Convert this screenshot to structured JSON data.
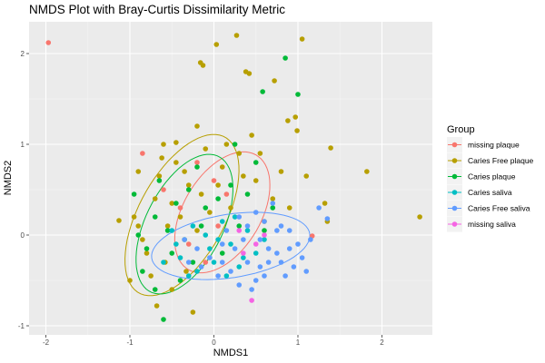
{
  "chart_data": {
    "type": "scatter",
    "title": "NMDS Plot with Bray-Curtis Dissimilarity Metric",
    "xlabel": "NMDS1",
    "ylabel": "NMDS2",
    "xlim": [
      -2.2,
      2.6
    ],
    "ylim": [
      -1.1,
      2.35
    ],
    "x_ticks": [
      -2,
      -1,
      0,
      1,
      2
    ],
    "y_ticks": [
      -1,
      0,
      1,
      2
    ],
    "grid": true,
    "legend": {
      "title": "Group",
      "placement": "right"
    },
    "series": [
      {
        "name": "missing plaque",
        "color": "#F8766D",
        "ellipse": {
          "cx": 0.1,
          "cy": 0.25,
          "rx": 0.75,
          "ry": 0.45,
          "angle": 55
        },
        "points": [
          [
            -1.97,
            2.12
          ],
          [
            1.17,
            -0.01
          ],
          [
            -0.85,
            0.9
          ],
          [
            0.0,
            0.6
          ],
          [
            -0.4,
            0.3
          ],
          [
            -0.2,
            0.8
          ],
          [
            0.15,
            0.45
          ],
          [
            -0.6,
            0.5
          ],
          [
            -0.3,
            -0.1
          ],
          [
            0.05,
            0.1
          ],
          [
            -0.1,
            -0.3
          ]
        ]
      },
      {
        "name": "Caries Free plaque",
        "color": "#B79F00",
        "ellipse": {
          "cx": -0.38,
          "cy": 0.22,
          "rx": 1.0,
          "ry": 0.5,
          "angle": 58
        },
        "points": [
          [
            0.27,
            2.2
          ],
          [
            0.03,
            2.1
          ],
          [
            1.05,
            2.16
          ],
          [
            -0.16,
            1.9
          ],
          [
            -0.13,
            1.87
          ],
          [
            0.38,
            1.8
          ],
          [
            0.42,
            1.78
          ],
          [
            0.72,
            1.7
          ],
          [
            0.88,
            1.26
          ],
          [
            0.97,
            1.3
          ],
          [
            0.99,
            1.15
          ],
          [
            1.39,
            0.96
          ],
          [
            1.82,
            0.7
          ],
          [
            2.45,
            0.2
          ],
          [
            1.32,
            0.35
          ],
          [
            1.35,
            0.15
          ],
          [
            -1.13,
            0.16
          ],
          [
            -0.6,
            1.0
          ],
          [
            -0.9,
            0.7
          ],
          [
            -0.68,
            -0.78
          ],
          [
            -0.33,
            -0.4
          ],
          [
            -0.2,
            1.2
          ],
          [
            0.45,
            1.1
          ],
          [
            0.5,
            0.6
          ],
          [
            0.7,
            0.4
          ],
          [
            0.9,
            0.3
          ],
          [
            -0.95,
            0.2
          ],
          [
            -0.8,
            -0.2
          ],
          [
            -0.5,
            -0.6
          ],
          [
            -0.25,
            -0.85
          ],
          [
            -0.7,
            0.4
          ],
          [
            -0.45,
            0.8
          ],
          [
            -0.3,
            0.55
          ],
          [
            -0.1,
            0.95
          ],
          [
            0.1,
            0.75
          ],
          [
            0.3,
            0.9
          ],
          [
            0.2,
            0.3
          ],
          [
            -0.55,
            0.1
          ],
          [
            -0.85,
            -0.05
          ],
          [
            -0.65,
            0.65
          ],
          [
            -0.4,
            0.2
          ],
          [
            -0.15,
            0.45
          ],
          [
            0.05,
            0.55
          ],
          [
            0.35,
            0.65
          ],
          [
            0.6,
            0.15
          ],
          [
            -0.75,
            -0.45
          ],
          [
            -0.58,
            -0.3
          ],
          [
            -0.2,
            0.05
          ],
          [
            -0.5,
            0.35
          ],
          [
            -0.35,
            0.7
          ],
          [
            -0.05,
            0.25
          ],
          [
            0.15,
            1.0
          ],
          [
            0.55,
            0.9
          ],
          [
            0.8,
            0.7
          ],
          [
            1.1,
            0.65
          ],
          [
            -1.0,
            -0.5
          ],
          [
            -0.9,
            0.1
          ],
          [
            -0.62,
            0.85
          ],
          [
            -0.45,
            1.02
          ]
        ]
      },
      {
        "name": "Caries plaque",
        "color": "#00BA38",
        "ellipse": {
          "cx": -0.35,
          "cy": 0.12,
          "rx": 0.85,
          "ry": 0.45,
          "angle": 60
        },
        "points": [
          [
            0.85,
            1.95
          ],
          [
            0.58,
            1.58
          ],
          [
            1.0,
            1.55
          ],
          [
            -0.6,
            -0.93
          ],
          [
            -0.95,
            0.45
          ],
          [
            -0.7,
            0.2
          ],
          [
            -0.5,
            -0.2
          ],
          [
            -0.3,
            0.5
          ],
          [
            -0.1,
            0.3
          ],
          [
            0.1,
            -0.2
          ],
          [
            0.3,
            0.1
          ],
          [
            -0.85,
            -0.4
          ],
          [
            -0.4,
            -0.5
          ],
          [
            0.25,
            1.0
          ],
          [
            0.5,
            0.8
          ],
          [
            0.7,
            0.3
          ],
          [
            -0.65,
            0.6
          ],
          [
            -0.2,
            0.75
          ],
          [
            -0.55,
            0.05
          ],
          [
            -0.8,
            -0.15
          ],
          [
            -0.35,
            -0.05
          ],
          [
            -0.15,
            0.1
          ],
          [
            0.05,
            0.4
          ],
          [
            0.2,
            0.55
          ],
          [
            -0.45,
            0.35
          ],
          [
            -0.25,
            -0.3
          ],
          [
            -0.7,
            -0.6
          ],
          [
            0.4,
            0.45
          ],
          [
            -0.9,
            0.0
          ],
          [
            0.6,
            0.05
          ]
        ]
      },
      {
        "name": "Caries saliva",
        "color": "#00BFC4",
        "ellipse": null,
        "points": [
          [
            -0.4,
            -0.25
          ],
          [
            -0.2,
            -0.4
          ],
          [
            0.0,
            -0.3
          ],
          [
            0.2,
            -0.1
          ],
          [
            -0.1,
            0.0
          ],
          [
            0.3,
            -0.35
          ],
          [
            -0.5,
            0.05
          ],
          [
            0.5,
            -0.2
          ],
          [
            0.1,
            0.15
          ],
          [
            -0.3,
            -0.45
          ],
          [
            0.4,
            0.05
          ],
          [
            -0.6,
            -0.3
          ],
          [
            0.15,
            -0.45
          ],
          [
            -0.05,
            -0.15
          ],
          [
            0.35,
            -0.25
          ],
          [
            -0.25,
            0.1
          ],
          [
            0.6,
            -0.05
          ],
          [
            0.05,
            -0.05
          ],
          [
            -0.45,
            -0.1
          ],
          [
            0.25,
            0.2
          ]
        ]
      },
      {
        "name": "Caries Free saliva",
        "color": "#619CFF",
        "ellipse": {
          "cx": 0.2,
          "cy": -0.12,
          "rx": 0.95,
          "ry": 0.35,
          "angle": 8
        },
        "points": [
          [
            0.55,
            -0.05
          ],
          [
            0.75,
            -0.2
          ],
          [
            0.9,
            0.05
          ],
          [
            1.05,
            -0.25
          ],
          [
            0.4,
            -0.3
          ],
          [
            0.25,
            -0.15
          ],
          [
            0.1,
            -0.1
          ],
          [
            -0.05,
            -0.25
          ],
          [
            -0.2,
            -0.15
          ],
          [
            0.6,
            0.15
          ],
          [
            0.85,
            -0.45
          ],
          [
            0.5,
            -0.5
          ],
          [
            1.25,
            0.3
          ],
          [
            1.35,
            0.18
          ],
          [
            0.45,
            -0.6
          ],
          [
            0.7,
            0.35
          ],
          [
            0.3,
            0.2
          ],
          [
            0.95,
            -0.35
          ],
          [
            0.65,
            -0.3
          ],
          [
            0.2,
            -0.4
          ],
          [
            -0.35,
            -0.05
          ],
          [
            0.15,
            0.05
          ],
          [
            0.8,
            0.1
          ],
          [
            1.0,
            -0.1
          ],
          [
            0.35,
            -0.05
          ],
          [
            0.55,
            -0.35
          ],
          [
            0.75,
            0.05
          ],
          [
            0.05,
            -0.45
          ],
          [
            -0.15,
            -0.35
          ],
          [
            0.4,
            0.1
          ],
          [
            0.9,
            -0.15
          ],
          [
            1.15,
            -0.05
          ],
          [
            0.3,
            -0.55
          ],
          [
            0.65,
            -0.15
          ],
          [
            0.5,
            0.25
          ],
          [
            -0.3,
            -0.3
          ],
          [
            0.1,
            -0.3
          ],
          [
            0.8,
            -0.3
          ],
          [
            1.1,
            -0.4
          ],
          [
            0.6,
            -0.45
          ]
        ]
      },
      {
        "name": "missing saliva",
        "color": "#F564E3",
        "ellipse": null,
        "points": [
          [
            0.45,
            -0.72
          ],
          [
            0.3,
            0.05
          ],
          [
            0.5,
            -0.1
          ],
          [
            0.35,
            -0.2
          ],
          [
            0.6,
            0.0
          ]
        ]
      }
    ]
  }
}
